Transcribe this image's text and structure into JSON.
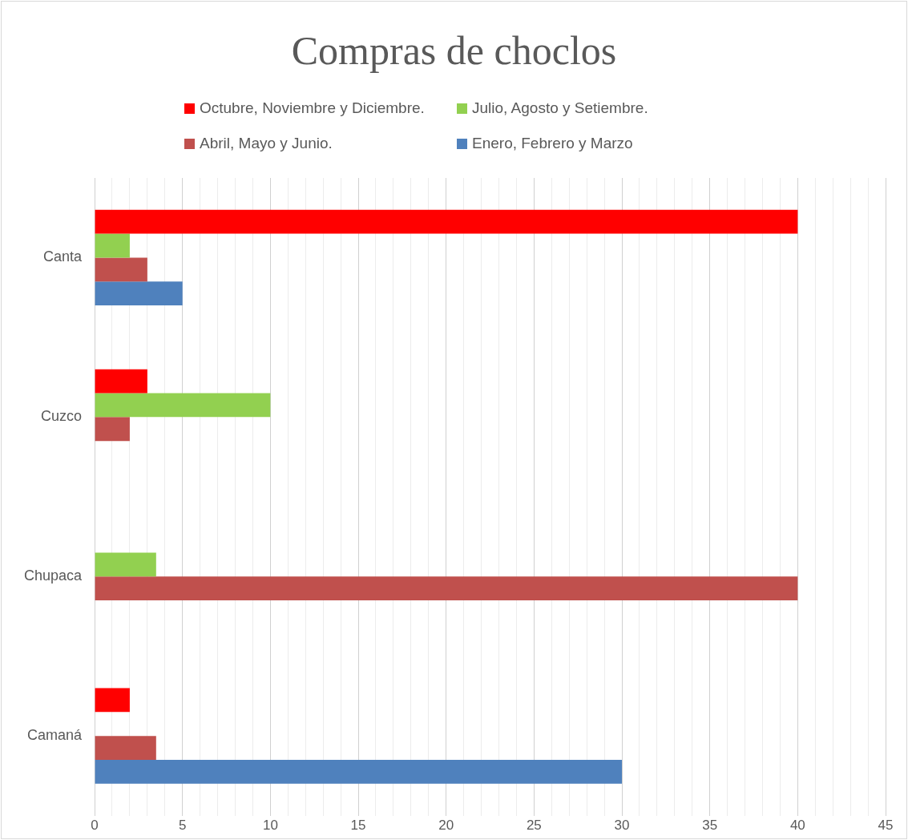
{
  "chart_data": {
    "type": "bar",
    "orientation": "horizontal",
    "title": "Compras de choclos",
    "categories": [
      "Canta",
      "Cuzco",
      "Chupaca",
      "Camaná"
    ],
    "series": [
      {
        "name": "Octubre, Noviembre y Diciembre.",
        "color": "#ff0000",
        "values": [
          40,
          3,
          null,
          2
        ]
      },
      {
        "name": "Julio, Agosto y Setiembre.",
        "color": "#92d050",
        "values": [
          2,
          10,
          3.5,
          null
        ]
      },
      {
        "name": "Abril, Mayo y Junio.",
        "color": "#c0504d",
        "values": [
          3,
          2,
          40,
          3.5
        ]
      },
      {
        "name": "Enero, Febrero y Marzo",
        "color": "#4f81bd",
        "values": [
          5,
          null,
          null,
          30
        ]
      }
    ],
    "xlim": [
      0,
      45
    ],
    "xticks": [
      0,
      {
        "value": 1,
        "label": null
      },
      {
        "value": 2,
        "label": null
      },
      {
        "value": 3,
        "label": null
      },
      {
        "value": 4,
        "label": null
      },
      5,
      {
        "value": 6,
        "label": null
      },
      {
        "value": 7,
        "label": null
      },
      {
        "value": 8,
        "label": null
      },
      {
        "value": 9,
        "label": null
      },
      10,
      {
        "value": 11,
        "label": null
      },
      {
        "value": 12,
        "label": null
      },
      {
        "value": 13,
        "label": null
      },
      {
        "value": 14,
        "label": null
      },
      15,
      {
        "value": 16,
        "label": null
      },
      {
        "value": 17,
        "label": null
      },
      {
        "value": 18,
        "label": null
      },
      {
        "value": 19,
        "label": null
      },
      20,
      {
        "value": 21,
        "label": null
      },
      {
        "value": 22,
        "label": null
      },
      {
        "value": 23,
        "label": null
      },
      {
        "value": 24,
        "label": null
      },
      25,
      {
        "value": 26,
        "label": null
      },
      {
        "value": 27,
        "label": null
      },
      {
        "value": 28,
        "label": null
      },
      {
        "value": 29,
        "label": null
      },
      30,
      {
        "value": 31,
        "label": null
      },
      {
        "value": 32,
        "label": null
      },
      {
        "value": 33,
        "label": null
      },
      {
        "value": 34,
        "label": null
      },
      35,
      {
        "value": 36,
        "label": null
      },
      {
        "value": 37,
        "label": null
      },
      {
        "value": 38,
        "label": null
      },
      {
        "value": 39,
        "label": null
      },
      40,
      {
        "value": 41,
        "label": null
      },
      {
        "value": 42,
        "label": null
      },
      {
        "value": 43,
        "label": null
      },
      {
        "value": 44,
        "label": null
      },
      45
    ],
    "grid": "x",
    "legend": "top"
  }
}
